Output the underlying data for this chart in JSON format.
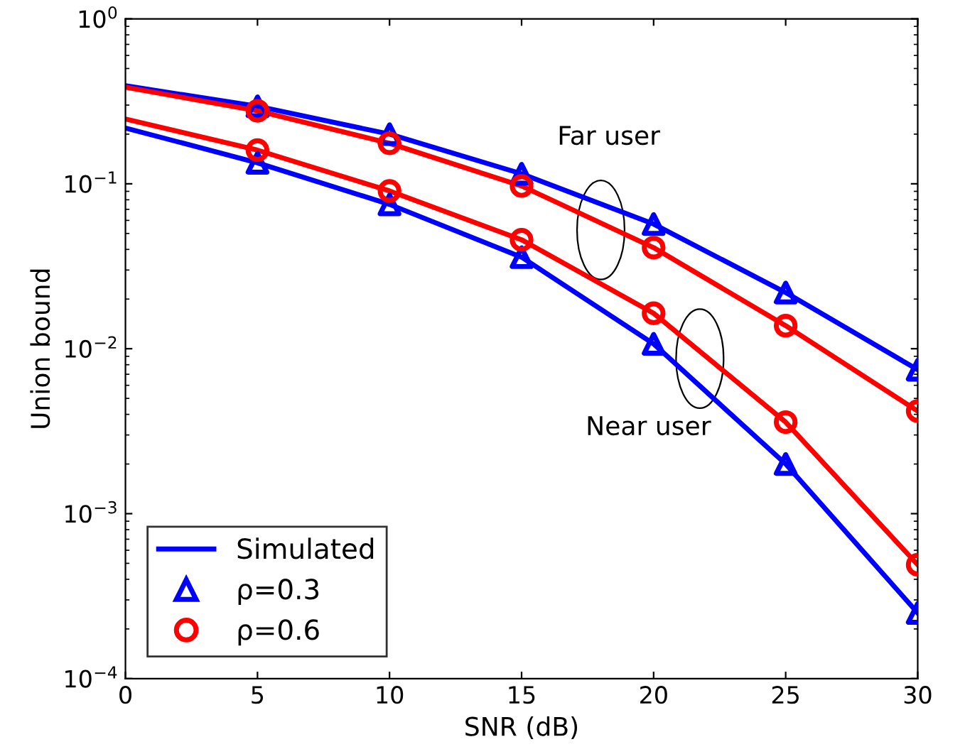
{
  "chart_data": {
    "type": "line",
    "xlabel": "SNR (dB)",
    "ylabel": "Union bound",
    "x": [
      0,
      5,
      10,
      15,
      20,
      25,
      30
    ],
    "series": [
      {
        "name": "Simulated",
        "color": "#0000ff",
        "marker": "none",
        "values": [
          0.393,
          0.295,
          0.2,
          0.115,
          0.057,
          0.0219,
          0.00746
        ]
      },
      {
        "color": "#0000ff",
        "marker": "none",
        "values": [
          0.218,
          0.134,
          0.075,
          0.0359,
          0.0107,
          0.002,
          0.00025
        ]
      },
      {
        "color": "#ff0000",
        "marker": "none",
        "values": [
          0.385,
          0.277,
          0.176,
          0.097,
          0.041,
          0.0138,
          0.00419
        ]
      },
      {
        "color": "#ff0000",
        "marker": "none",
        "values": [
          0.247,
          0.16,
          0.0905,
          0.0458,
          0.0164,
          0.00359,
          0.00049
        ]
      },
      {
        "name": "ρ=0.3",
        "type": "scatter",
        "color": "#0000ff",
        "marker": "triangle",
        "x": [
          5,
          10,
          15,
          20,
          25,
          30,
          5,
          10,
          15,
          20,
          25,
          30
        ],
        "values": [
          0.295,
          0.2,
          0.115,
          0.057,
          0.0219,
          0.00746,
          0.134,
          0.075,
          0.0359,
          0.0107,
          0.002,
          0.00025
        ]
      },
      {
        "name": "ρ=0.6",
        "type": "scatter",
        "color": "#ff0000",
        "marker": "circle",
        "x": [
          5,
          10,
          15,
          20,
          25,
          30,
          5,
          10,
          15,
          20,
          25,
          30
        ],
        "values": [
          0.277,
          0.176,
          0.097,
          0.041,
          0.0138,
          0.00419,
          0.16,
          0.0905,
          0.0458,
          0.0164,
          0.00359,
          0.00049
        ]
      }
    ],
    "log": "y",
    "xlim": [
      0,
      30
    ],
    "xticks": [
      0,
      5,
      10,
      15,
      20,
      25,
      30
    ],
    "ylim": [
      0.0001,
      1
    ],
    "yticks": [
      {
        "value": 0.0001,
        "label": "10$^{−4}$"
      },
      {
        "value": 0.001,
        "label": "10$^{−3}$"
      },
      {
        "value": 0.01,
        "label": "10$^{−2}$"
      },
      {
        "value": 0.1,
        "label": "10$^{−1}$"
      },
      {
        "value": 1,
        "label": "10$^{0}$"
      }
    ],
    "annotations": [
      "Far user",
      "Near user"
    ],
    "legend": "bottom left",
    "grid": false
  }
}
